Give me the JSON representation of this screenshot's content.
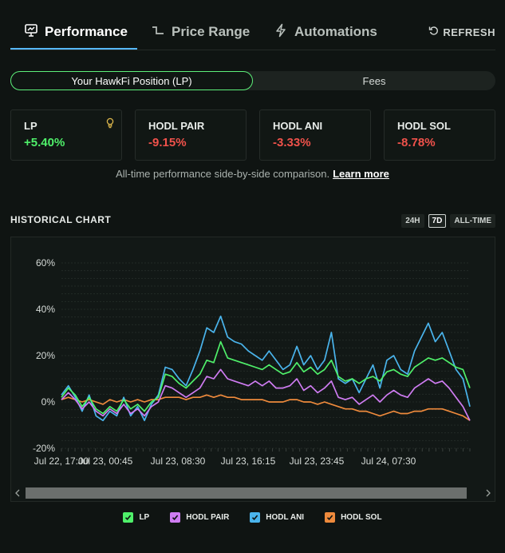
{
  "tabs": [
    {
      "label": "Performance",
      "icon": "chart-presentation-icon"
    },
    {
      "label": "Price Range",
      "icon": "range-step-icon"
    },
    {
      "label": "Automations",
      "icon": "lightning-icon"
    }
  ],
  "refresh_label": "REFRESH",
  "segment": {
    "position_label": "Your HawkFi Position (LP)",
    "fees_label": "Fees"
  },
  "cards": [
    {
      "label": "LP",
      "value": "+5.40%"
    },
    {
      "label": "HODL PAIR",
      "value": "-9.15%"
    },
    {
      "label": "HODL ANI",
      "value": "-3.33%"
    },
    {
      "label": "HODL SOL",
      "value": "-8.78%"
    }
  ],
  "caption": {
    "text": "All-time performance side-by-side comparison.",
    "link": "Learn more"
  },
  "historical": {
    "title": "HISTORICAL CHART",
    "ranges": [
      "24H",
      "7D",
      "ALL-TIME"
    ],
    "active_range": "7D"
  },
  "colors": {
    "lp": "#4ff06a",
    "pair": "#cf7cf2",
    "ani": "#4ab4ec",
    "sol": "#ee8a3c",
    "negative": "#f0524b",
    "accent": "#57b8ff"
  },
  "chart_data": {
    "type": "line",
    "y_ticks": [
      "60%",
      "40%",
      "20%",
      "0%",
      "-20%"
    ],
    "ylim": [
      -20,
      60
    ],
    "x_ticks": [
      "Jul 22, 17:00",
      "Jul 23, 00:45",
      "Jul 23, 08:30",
      "Jul 23, 16:15",
      "Jul 23, 23:45",
      "Jul 24, 07:30"
    ],
    "x": [
      0,
      1,
      2,
      3,
      4,
      5,
      6,
      7,
      8,
      9,
      10,
      11,
      12,
      13,
      14,
      15,
      16,
      17,
      18,
      19,
      20,
      21,
      22,
      23,
      24,
      25,
      26,
      27,
      28,
      29,
      30,
      31,
      32,
      33,
      34,
      35,
      36,
      37,
      38,
      39,
      40,
      41,
      42,
      43,
      44,
      45,
      46,
      47,
      48,
      49,
      50,
      51,
      52,
      53,
      54,
      55,
      56,
      57,
      58,
      59
    ],
    "series": [
      {
        "name": "LP",
        "values": [
          2,
          6,
          3,
          -2,
          2,
          -3,
          -5,
          -2,
          -4,
          1,
          -3,
          -1,
          -4,
          0,
          2,
          12,
          11,
          8,
          6,
          9,
          12,
          18,
          17,
          26,
          19,
          18,
          17,
          16,
          15,
          14,
          16,
          14,
          12,
          13,
          17,
          13,
          15,
          12,
          14,
          18,
          11,
          9,
          10,
          8,
          10,
          11,
          9,
          13,
          14,
          12,
          11,
          15,
          17,
          19,
          18,
          19,
          17,
          15,
          14,
          6
        ]
      },
      {
        "name": "HODL PAIR",
        "values": [
          1,
          4,
          1,
          -3,
          0,
          -4,
          -6,
          -3,
          -5,
          -1,
          -5,
          -3,
          -6,
          -2,
          0,
          7,
          6,
          4,
          2,
          4,
          6,
          11,
          10,
          14,
          10,
          9,
          8,
          7,
          9,
          7,
          9,
          6,
          6,
          7,
          10,
          5,
          7,
          4,
          6,
          9,
          2,
          1,
          2,
          -1,
          1,
          3,
          0,
          3,
          5,
          3,
          2,
          6,
          8,
          10,
          8,
          9,
          6,
          2,
          -2,
          -8
        ]
      },
      {
        "name": "HODL ANI",
        "values": [
          3,
          7,
          2,
          -4,
          3,
          -6,
          -8,
          -4,
          -6,
          2,
          -6,
          -2,
          -8,
          -1,
          3,
          15,
          14,
          10,
          7,
          14,
          22,
          32,
          30,
          37,
          28,
          26,
          25,
          22,
          20,
          18,
          22,
          18,
          14,
          16,
          24,
          16,
          20,
          14,
          18,
          30,
          10,
          8,
          10,
          4,
          10,
          16,
          6,
          18,
          20,
          14,
          12,
          22,
          28,
          34,
          26,
          30,
          22,
          14,
          10,
          -2
        ]
      },
      {
        "name": "HODL SOL",
        "values": [
          1,
          2,
          1,
          0,
          1,
          0,
          -1,
          1,
          0,
          1,
          0,
          1,
          0,
          1,
          1,
          2,
          2,
          2,
          1,
          2,
          2,
          3,
          2,
          3,
          2,
          2,
          1,
          1,
          1,
          1,
          0,
          0,
          0,
          1,
          1,
          0,
          0,
          -1,
          0,
          -1,
          -2,
          -3,
          -3,
          -4,
          -4,
          -5,
          -6,
          -5,
          -4,
          -5,
          -5,
          -4,
          -4,
          -3,
          -3,
          -3,
          -4,
          -5,
          -6,
          -8
        ]
      }
    ]
  }
}
